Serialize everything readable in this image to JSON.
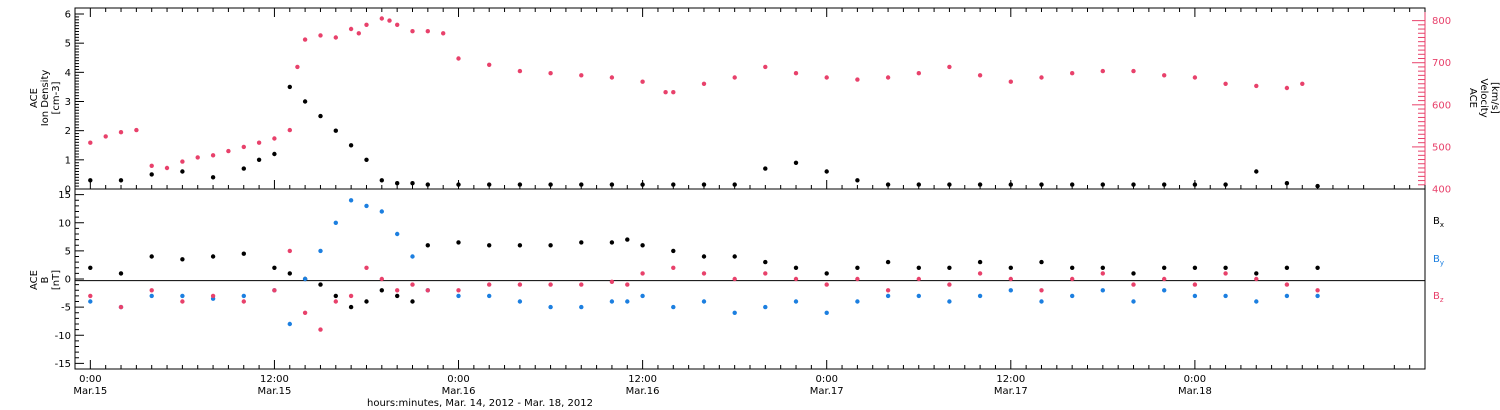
{
  "chart_data": [
    {
      "type": "scatter",
      "panel": "top",
      "ylabel_left": [
        "ACE",
        "Ion Density",
        "[cm-3]"
      ],
      "ylabel_right": [
        "ACE",
        "Velocity",
        "[km/s]"
      ],
      "ylim_left": [
        0,
        6
      ],
      "ylim_right": [
        400,
        830
      ],
      "yticks_left": [
        "0",
        "1",
        "2",
        "3",
        "4",
        "5",
        "6"
      ],
      "yticks_right": [
        "400",
        "500",
        "600",
        "700",
        "800"
      ],
      "series": [
        {
          "name": "Ion Density",
          "axis": "left",
          "color": "#000000",
          "x_hours": [
            0,
            2,
            4,
            6,
            8,
            10,
            11,
            12,
            13,
            14,
            15,
            16,
            17,
            18,
            19,
            20,
            21,
            22,
            24,
            26,
            28,
            30,
            32,
            34,
            36,
            38,
            40,
            42,
            44,
            46,
            48,
            50,
            52,
            54,
            56,
            58,
            60,
            62,
            64,
            66,
            68,
            70,
            72,
            74,
            76,
            78,
            80
          ],
          "y": [
            0.3,
            0.3,
            0.5,
            0.6,
            0.4,
            0.7,
            1.0,
            1.2,
            3.5,
            3.0,
            2.5,
            2.0,
            1.5,
            1.0,
            0.3,
            0.2,
            0.2,
            0.15,
            0.15,
            0.15,
            0.15,
            0.15,
            0.15,
            0.15,
            0.15,
            0.15,
            0.15,
            0.15,
            0.7,
            0.9,
            0.6,
            0.3,
            0.15,
            0.15,
            0.15,
            0.15,
            0.15,
            0.15,
            0.15,
            0.15,
            0.15,
            0.15,
            0.15,
            0.15,
            0.6,
            0.2,
            0.1
          ]
        },
        {
          "name": "Velocity",
          "axis": "right",
          "color": "#e8416b",
          "x_hours": [
            0,
            1,
            2,
            3,
            4,
            5,
            6,
            7,
            8,
            9,
            10,
            11,
            12,
            13,
            13.5,
            14,
            15,
            16,
            17,
            17.5,
            18,
            19,
            19.5,
            20,
            21,
            22,
            23,
            24,
            26,
            28,
            30,
            32,
            34,
            36,
            37.5,
            38,
            40,
            42,
            44,
            46,
            48,
            50,
            52,
            54,
            56,
            58,
            60,
            62,
            64,
            66,
            68,
            70,
            72,
            74,
            76,
            78,
            79
          ],
          "y": [
            510,
            525,
            535,
            540,
            455,
            450,
            465,
            475,
            480,
            490,
            500,
            510,
            520,
            540,
            690,
            755,
            765,
            760,
            780,
            770,
            790,
            805,
            800,
            790,
            775,
            775,
            770,
            710,
            695,
            680,
            675,
            670,
            665,
            655,
            630,
            630,
            650,
            665,
            690,
            675,
            665,
            660,
            665,
            675,
            690,
            670,
            655,
            665,
            675,
            680,
            680,
            670,
            665,
            650,
            645,
            640,
            650
          ]
        }
      ]
    },
    {
      "type": "scatter",
      "panel": "bottom",
      "ylabel": [
        "ACE",
        "B",
        "[nT]"
      ],
      "ylim": [
        -16,
        16
      ],
      "yticks": [
        "-15",
        "-10",
        "-5",
        "0",
        "5",
        "10",
        "15"
      ],
      "series": [
        {
          "name": "Bx",
          "color": "#000000",
          "x_hours": [
            0,
            2,
            4,
            6,
            8,
            10,
            12,
            13,
            14,
            15,
            16,
            17,
            18,
            19,
            20,
            21,
            22,
            24,
            26,
            28,
            30,
            32,
            34,
            35,
            36,
            38,
            40,
            42,
            44,
            46,
            48,
            50,
            52,
            54,
            56,
            58,
            60,
            62,
            64,
            66,
            68,
            70,
            72,
            74,
            76,
            78,
            80
          ],
          "y": [
            2,
            1,
            4,
            3.5,
            4,
            4.5,
            2,
            1,
            0,
            -1,
            -3,
            -5,
            -4,
            -2,
            -3,
            -4,
            6,
            6.5,
            6,
            6,
            6,
            6.5,
            6.5,
            7,
            6,
            5,
            4,
            4,
            3,
            2,
            1,
            2,
            3,
            2,
            2,
            3,
            2,
            3,
            2,
            2,
            1,
            2,
            2,
            2,
            1,
            2,
            2
          ]
        },
        {
          "name": "By",
          "color": "#1c7fe0",
          "x_hours": [
            0,
            2,
            4,
            6,
            8,
            10,
            12,
            13,
            14,
            15,
            16,
            17,
            18,
            19,
            20,
            21,
            22,
            24,
            26,
            28,
            30,
            32,
            34,
            35,
            36,
            38,
            40,
            42,
            44,
            46,
            48,
            50,
            52,
            54,
            56,
            58,
            60,
            62,
            64,
            66,
            68,
            70,
            72,
            74,
            76,
            78,
            80
          ],
          "y": [
            -4,
            -5,
            -3,
            -3,
            -3.5,
            -3,
            -2,
            -8,
            0,
            5,
            10,
            14,
            13,
            12,
            8,
            4,
            -2,
            -3,
            -3,
            -4,
            -5,
            -5,
            -4,
            -4,
            -3,
            -5,
            -4,
            -6,
            -5,
            -4,
            -6,
            -4,
            -3,
            -3,
            -4,
            -3,
            -2,
            -4,
            -3,
            -2,
            -4,
            -2,
            -3,
            -3,
            -4,
            -3,
            -3
          ]
        },
        {
          "name": "Bz",
          "color": "#e8416b",
          "x_hours": [
            0,
            2,
            4,
            6,
            8,
            10,
            12,
            13,
            14,
            15,
            16,
            17,
            18,
            19,
            20,
            21,
            22,
            24,
            26,
            28,
            30,
            32,
            34,
            35,
            36,
            38,
            40,
            42,
            44,
            46,
            48,
            50,
            52,
            54,
            56,
            58,
            60,
            62,
            64,
            66,
            68,
            70,
            72,
            74,
            76,
            78,
            80
          ],
          "y": [
            -3,
            -5,
            -2,
            -4,
            -3,
            -4,
            -2,
            5,
            -6,
            -9,
            -4,
            -3,
            2,
            0,
            -2,
            -1,
            -2,
            -2,
            -1,
            -1,
            -1,
            -1,
            -0.5,
            -1,
            1,
            2,
            1,
            0,
            1,
            0,
            -1,
            0,
            -2,
            0,
            -1,
            1,
            0,
            -2,
            0,
            1,
            -1,
            0,
            -1,
            1,
            0,
            -1,
            -2
          ]
        }
      ],
      "legend": [
        "B",
        "B",
        "B"
      ],
      "legend_subscripts": [
        "x",
        "y",
        "z"
      ],
      "legend_placement": "right"
    }
  ],
  "x_axis": {
    "range_hours": [
      -1,
      87
    ],
    "ticks": [
      {
        "hours": 0,
        "time": "0:00",
        "date": "Mar.15"
      },
      {
        "hours": 12,
        "time": "12:00",
        "date": "Mar.15"
      },
      {
        "hours": 24,
        "time": "0:00",
        "date": "Mar.16"
      },
      {
        "hours": 36,
        "time": "12:00",
        "date": "Mar.16"
      },
      {
        "hours": 48,
        "time": "0:00",
        "date": "Mar.17"
      },
      {
        "hours": 60,
        "time": "12:00",
        "date": "Mar.17"
      },
      {
        "hours": 72,
        "time": "0:00",
        "date": "Mar.18"
      }
    ],
    "label": "hours:minutes, Mar. 14, 2012 - Mar. 18, 2012"
  }
}
